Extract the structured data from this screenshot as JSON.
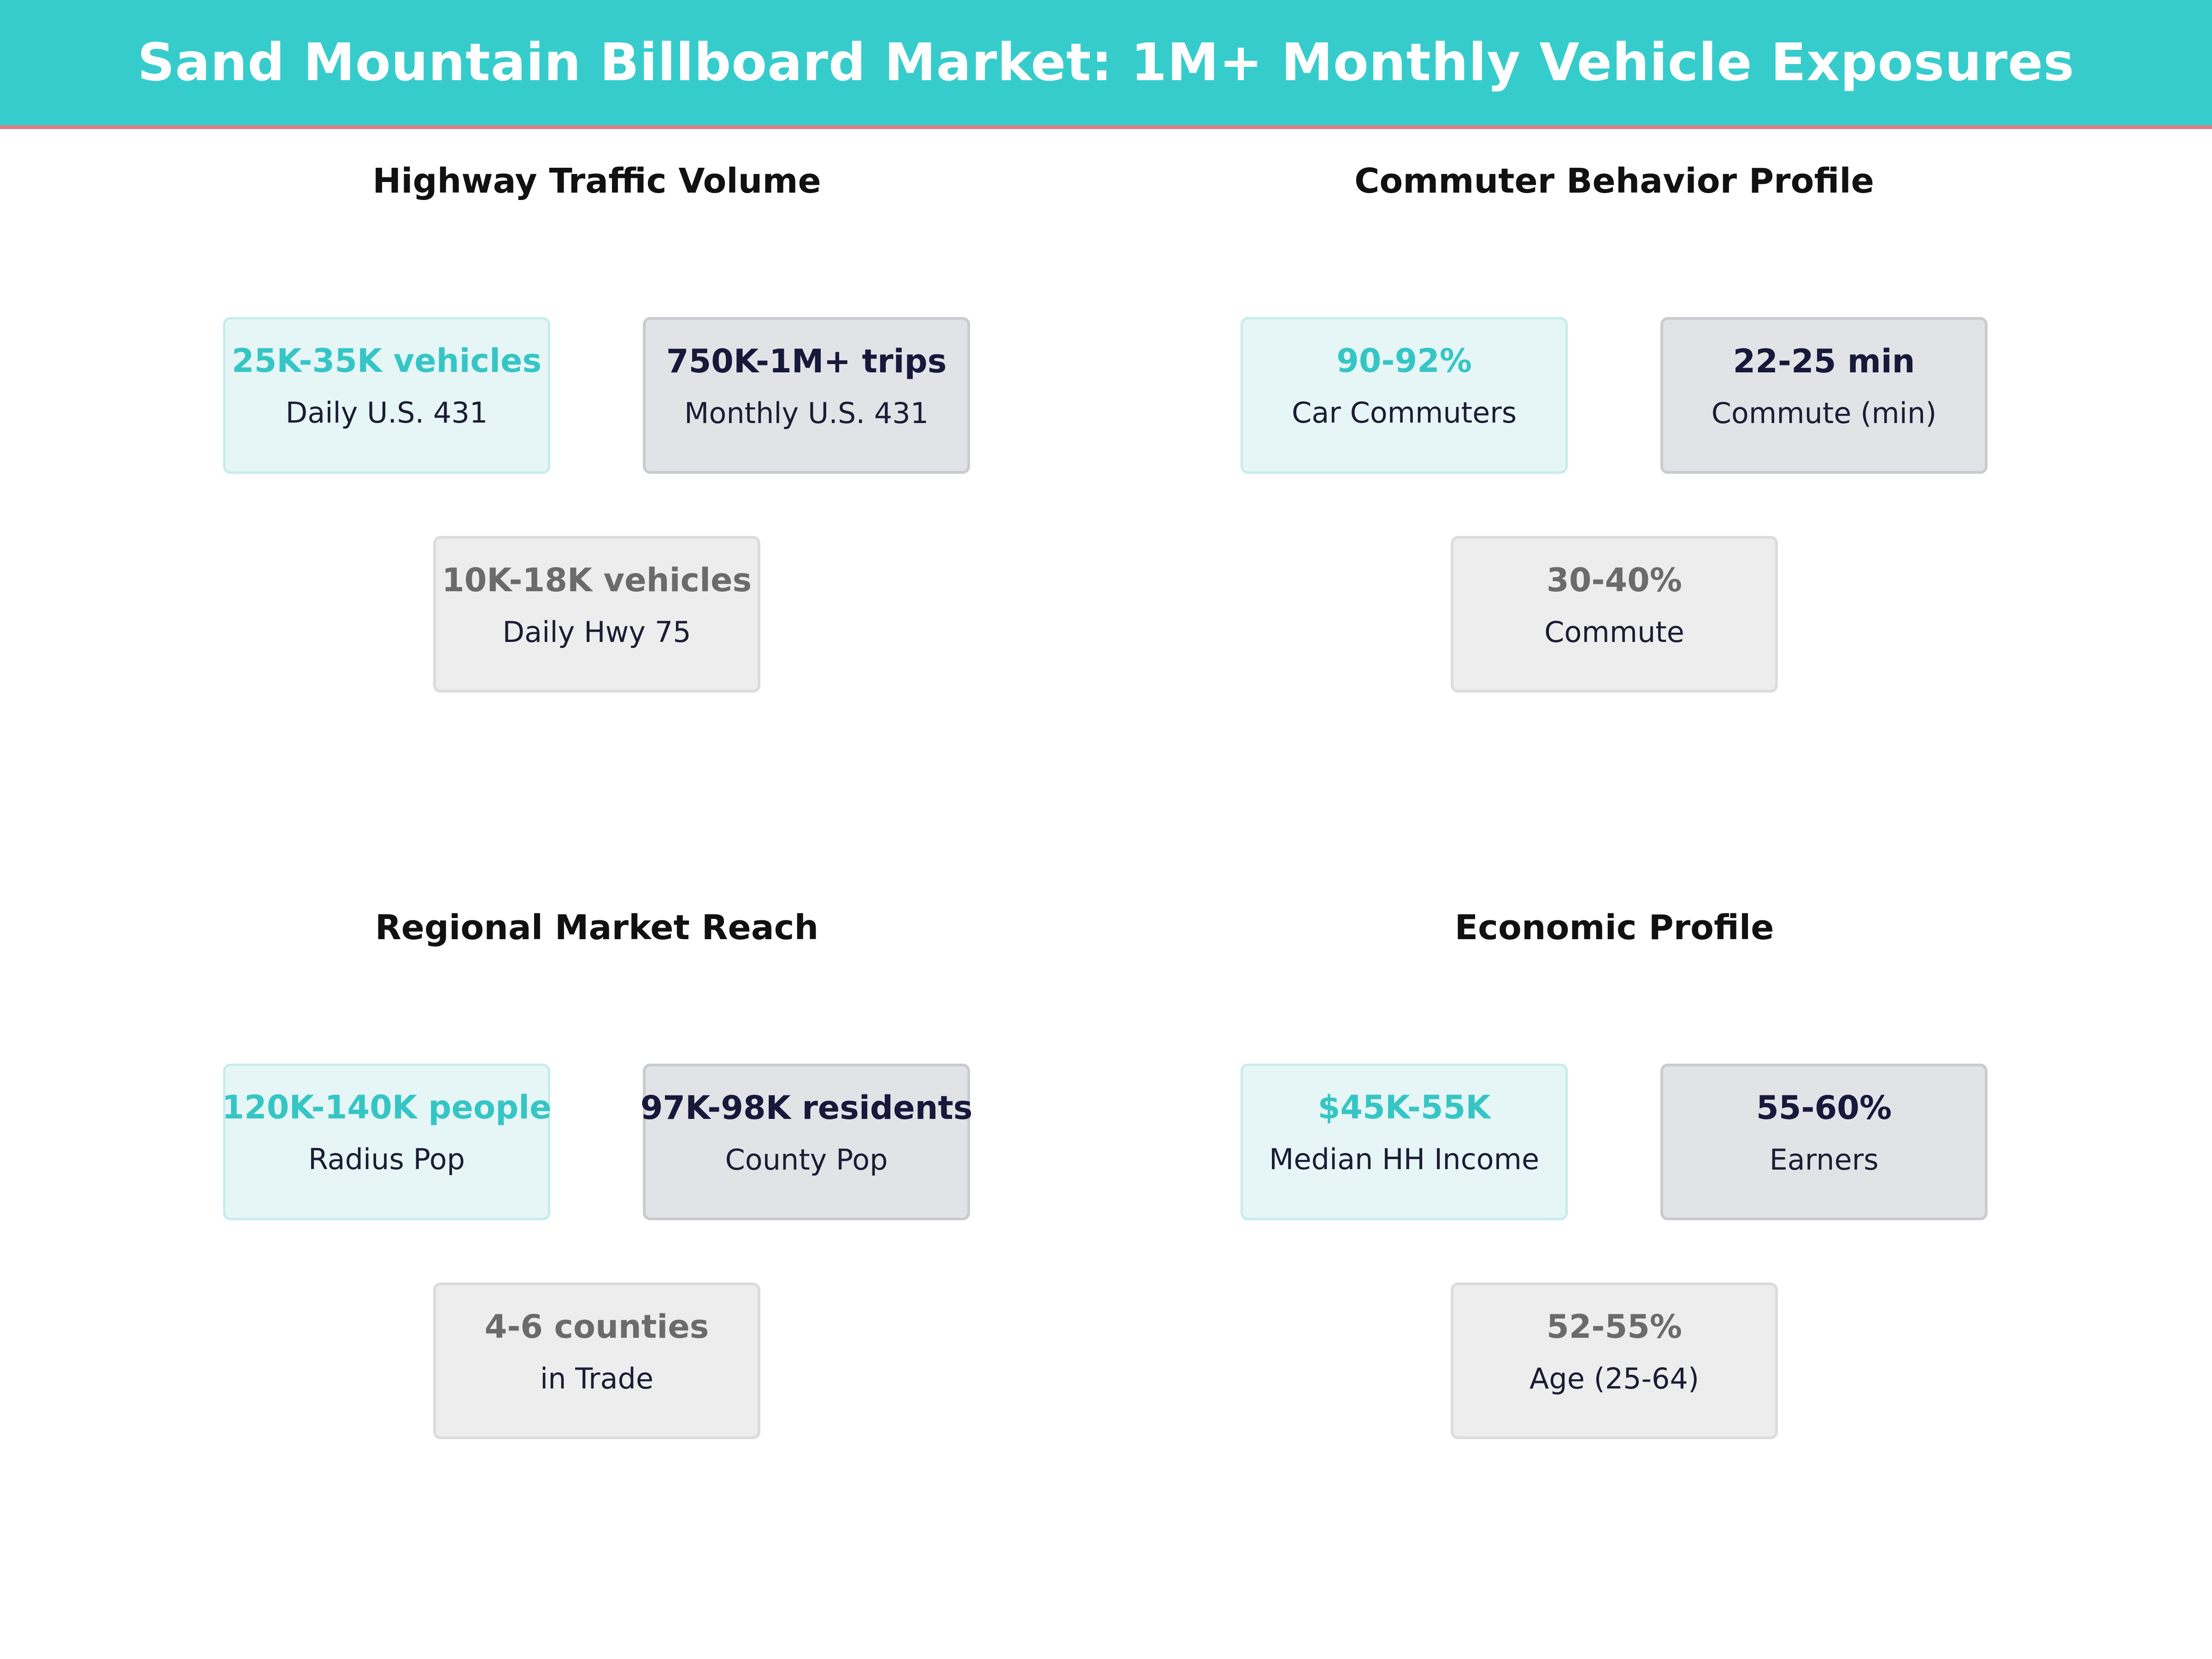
{
  "header": {
    "title": "Sand Mountain Billboard Market: 1M+ Monthly Vehicle Exposures"
  },
  "colors": {
    "header_bg": "#36cccc",
    "header_rule": "#e07a80",
    "teal_value": "#36c5c5",
    "navy_value": "#17183a",
    "grey_value": "#6b6b6b"
  },
  "panels": [
    {
      "title": "Highway Traffic Volume",
      "cards": [
        {
          "value": "25K-35K vehicles",
          "label": "Daily U.S. 431"
        },
        {
          "value": "750K-1M+ trips",
          "label": "Monthly U.S. 431"
        },
        {
          "value": "10K-18K vehicles",
          "label": "Daily Hwy 75"
        }
      ]
    },
    {
      "title": "Commuter Behavior Profile",
      "cards": [
        {
          "value": "90-92%",
          "label": "Car Commuters"
        },
        {
          "value": "22-25 min",
          "label": "Commute (min)"
        },
        {
          "value": "30-40%",
          "label": "Commute"
        }
      ]
    },
    {
      "title": "Regional Market Reach",
      "cards": [
        {
          "value": "120K-140K people",
          "label": "Radius Pop"
        },
        {
          "value": "97K-98K residents",
          "label": "County Pop"
        },
        {
          "value": "4-6 counties",
          "label": "in Trade"
        }
      ]
    },
    {
      "title": "Economic Profile",
      "cards": [
        {
          "value": "$45K-55K",
          "label": "Median HH Income"
        },
        {
          "value": "55-60%",
          "label": "Earners"
        },
        {
          "value": "52-55%",
          "label": "Age (25-64)"
        }
      ]
    }
  ]
}
